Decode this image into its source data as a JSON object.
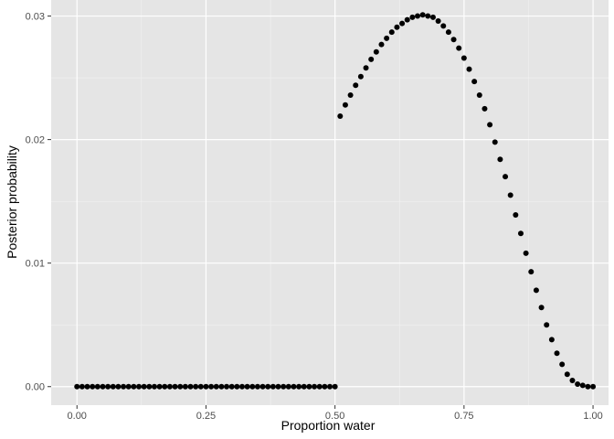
{
  "chart_data": {
    "type": "scatter",
    "xlabel": "Proportion water",
    "ylabel": "Posterior probability",
    "xlim": [
      -0.05,
      1.03
    ],
    "ylim": [
      -0.0015,
      0.0313
    ],
    "x_ticks": [
      0,
      0.25,
      0.5,
      0.75,
      1
    ],
    "x_tick_labels": [
      "0.00",
      "0.25",
      "0.50",
      "0.75",
      "1.00"
    ],
    "y_ticks": [
      0,
      0.01,
      0.02,
      0.03
    ],
    "y_tick_labels": [
      "0.00",
      "0.01",
      "0.02",
      "0.03"
    ],
    "grid": true,
    "legend": "none",
    "colors": {
      "panel": "#e5e5e5",
      "grid_major": "#ffffff",
      "point": "#000000"
    },
    "series": [
      {
        "x": [
          0.0,
          0.01,
          0.02,
          0.03,
          0.04,
          0.05,
          0.06,
          0.07,
          0.08,
          0.09,
          0.1,
          0.11,
          0.12,
          0.13,
          0.14,
          0.15,
          0.16,
          0.17,
          0.18,
          0.19,
          0.2,
          0.21,
          0.22,
          0.23,
          0.24,
          0.25,
          0.26,
          0.27,
          0.28,
          0.29,
          0.3,
          0.31,
          0.32,
          0.33,
          0.34,
          0.35,
          0.36,
          0.37,
          0.38,
          0.39,
          0.4,
          0.41,
          0.42,
          0.43,
          0.44,
          0.45,
          0.46,
          0.47,
          0.48,
          0.49,
          0.5,
          0.51,
          0.52,
          0.53,
          0.54,
          0.55,
          0.56,
          0.57,
          0.58,
          0.59,
          0.6,
          0.61,
          0.62,
          0.63,
          0.64,
          0.65,
          0.66,
          0.67,
          0.68,
          0.69,
          0.7,
          0.71,
          0.72,
          0.73,
          0.74,
          0.75,
          0.76,
          0.77,
          0.78,
          0.79,
          0.8,
          0.81,
          0.82,
          0.83,
          0.84,
          0.85,
          0.86,
          0.87,
          0.88,
          0.89,
          0.9,
          0.91,
          0.92,
          0.93,
          0.94,
          0.95,
          0.96,
          0.97,
          0.98,
          0.99,
          1.0
        ],
        "values": [
          0,
          0,
          0,
          0,
          0,
          0,
          0,
          0,
          0,
          0,
          0,
          0,
          0,
          0,
          0,
          0,
          0,
          0,
          0,
          0,
          0,
          0,
          0,
          0,
          0,
          0,
          0,
          0,
          0,
          0,
          0,
          0,
          0,
          0,
          0,
          0,
          0,
          0,
          0,
          0,
          0,
          0,
          0,
          0,
          0,
          0,
          0,
          0,
          0,
          0,
          0,
          0.0219,
          0.0228,
          0.0236,
          0.0244,
          0.0251,
          0.0258,
          0.0265,
          0.0271,
          0.0277,
          0.0282,
          0.0287,
          0.0291,
          0.0294,
          0.0297,
          0.0299,
          0.03,
          0.0301,
          0.03,
          0.0299,
          0.0296,
          0.0292,
          0.0287,
          0.0281,
          0.0274,
          0.0266,
          0.0257,
          0.0247,
          0.0236,
          0.0225,
          0.0212,
          0.0198,
          0.0184,
          0.017,
          0.0155,
          0.0139,
          0.0124,
          0.0108,
          0.0093,
          0.0078,
          0.0064,
          0.005,
          0.0038,
          0.0027,
          0.0018,
          0.001,
          0.0005,
          0.0002,
          0.0001,
          0.0,
          0.0
        ]
      }
    ]
  }
}
